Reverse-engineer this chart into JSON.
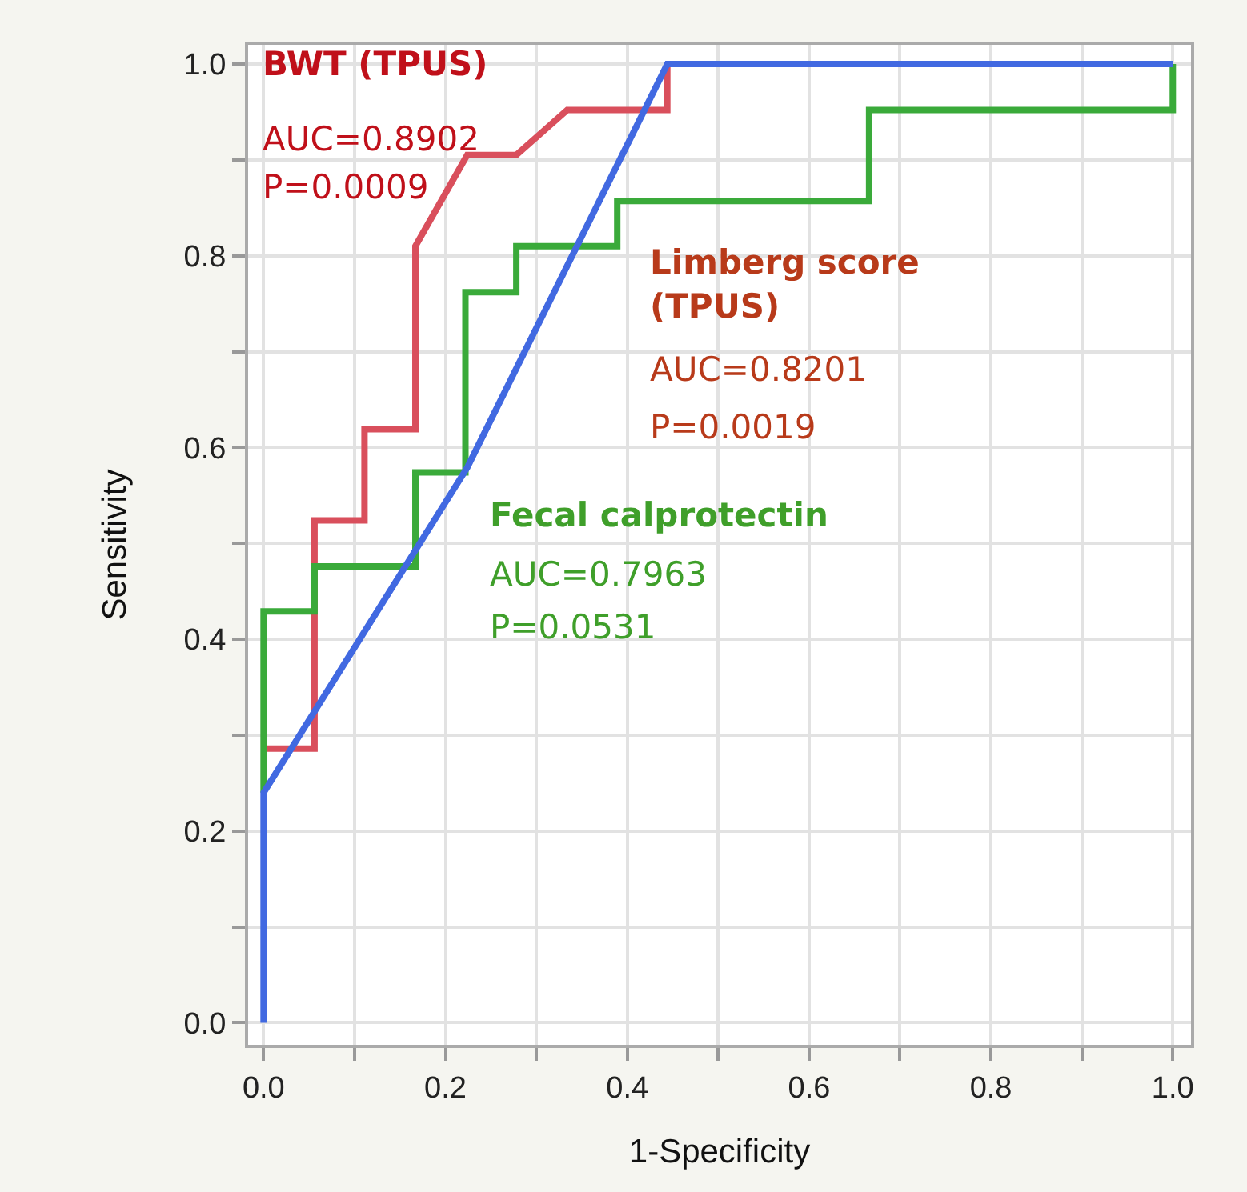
{
  "chart_data": {
    "type": "line",
    "xlabel": "1-Specificity",
    "ylabel": "Sensitivity",
    "xlim": [
      -0.017,
      1.02
    ],
    "ylim": [
      -0.023,
      1.02
    ],
    "xticks": [
      {
        "value": 0,
        "label": "0.0"
      },
      {
        "value": 0.1,
        "label": null
      },
      {
        "value": 0.2,
        "label": "0.2"
      },
      {
        "value": 0.3,
        "label": null
      },
      {
        "value": 0.4,
        "label": "0.4"
      },
      {
        "value": 0.5,
        "label": null
      },
      {
        "value": 0.6,
        "label": "0.6"
      },
      {
        "value": 0.7,
        "label": null
      },
      {
        "value": 0.8,
        "label": "0.8"
      },
      {
        "value": 0.9,
        "label": null
      },
      {
        "value": 1,
        "label": "1.0"
      }
    ],
    "yticks": [
      {
        "value": 0,
        "label": "0.0"
      },
      {
        "value": 0.1,
        "label": null
      },
      {
        "value": 0.2,
        "label": "0.2"
      },
      {
        "value": 0.3,
        "label": null
      },
      {
        "value": 0.4,
        "label": "0.4"
      },
      {
        "value": 0.5,
        "label": null
      },
      {
        "value": 0.6,
        "label": "0.6"
      },
      {
        "value": 0.7,
        "label": null
      },
      {
        "value": 0.8,
        "label": "0.8"
      },
      {
        "value": 0.9,
        "label": null
      },
      {
        "value": 1,
        "label": "1.0"
      }
    ],
    "grid": true,
    "marker": "none",
    "line_style": "solid",
    "series": [
      {
        "color": "#d94f5c",
        "x": [
          0,
          0.056,
          0.056,
          0.111,
          0.111,
          0.167,
          0.167,
          0.224,
          0.278,
          0.334,
          0.444,
          0.444
        ],
        "values": [
          0.286,
          0.286,
          0.524,
          0.524,
          0.619,
          0.619,
          0.81,
          0.905,
          0.905,
          0.952,
          0.952,
          1.0
        ]
      },
      {
        "color": "#3aaa3a",
        "x": [
          0,
          0,
          0.056,
          0.056,
          0.167,
          0.167,
          0.222,
          0.222,
          0.278,
          0.278,
          0.389,
          0.389,
          0.666,
          0.666,
          1.0,
          1.0
        ],
        "values": [
          0.24,
          0.429,
          0.429,
          0.476,
          0.476,
          0.574,
          0.574,
          0.762,
          0.762,
          0.81,
          0.81,
          0.857,
          0.857,
          0.952,
          0.952,
          1.0
        ]
      },
      {
        "color": "#4169e1",
        "x": [
          0,
          0,
          0.224,
          0.444,
          1.0
        ],
        "values": [
          0,
          0.24,
          0.579,
          1.0,
          1.0
        ]
      }
    ],
    "annotations": [
      "BWT (TPUS)",
      "AUC=0.8902",
      "P=0.0009",
      "Limberg score (TPUS)",
      "AUC=0.8201",
      "P=0.0019",
      "Fecal calprotectin",
      "AUC=0.7963",
      "P=0.0531"
    ]
  }
}
